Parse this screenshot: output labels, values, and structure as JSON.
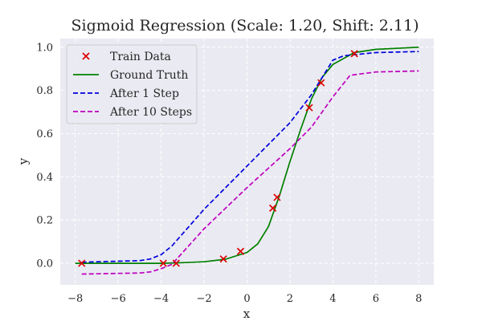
{
  "chart_data": {
    "type": "line",
    "title": "Sigmoid Regression (Scale: 1.20, Shift: 2.11)",
    "xlabel": "x",
    "ylabel": "y",
    "xlim": [
      -8.7,
      8.7
    ],
    "ylim": [
      -0.1,
      1.04
    ],
    "xticks": [
      -8,
      -6,
      -4,
      -2,
      0,
      2,
      4,
      6,
      8
    ],
    "xtick_labels": [
      "−8",
      "−6",
      "−4",
      "−2",
      "0",
      "2",
      "4",
      "6",
      "8"
    ],
    "yticks": [
      0.0,
      0.2,
      0.4,
      0.6,
      0.8,
      1.0
    ],
    "ytick_labels": [
      "0.0",
      "0.2",
      "0.4",
      "0.6",
      "0.8",
      "1.0"
    ],
    "grid": true,
    "legend_position": "top-left",
    "background_color": "#eaeaf2",
    "grid_color": "#ffffff",
    "series": [
      {
        "name": "Train Data",
        "kind": "scatter",
        "marker": "x",
        "color": "#dd0000",
        "points": [
          [
            -7.7,
            0.0
          ],
          [
            -3.9,
            0.0
          ],
          [
            -3.3,
            0.0
          ],
          [
            -1.1,
            0.02
          ],
          [
            -0.3,
            0.055
          ],
          [
            1.2,
            0.255
          ],
          [
            1.4,
            0.305
          ],
          [
            2.9,
            0.72
          ],
          [
            3.45,
            0.835
          ],
          [
            5.0,
            0.97
          ]
        ]
      },
      {
        "name": "Ground Truth",
        "kind": "line",
        "style": "solid",
        "color": "#008000",
        "points": [
          [
            -8,
            0.0
          ],
          [
            -6,
            0.0
          ],
          [
            -4,
            0.0
          ],
          [
            -3,
            0.003
          ],
          [
            -2,
            0.007
          ],
          [
            -1,
            0.019
          ],
          [
            0,
            0.05
          ],
          [
            0.5,
            0.09
          ],
          [
            1,
            0.17
          ],
          [
            1.5,
            0.31
          ],
          [
            2,
            0.47
          ],
          [
            2.5,
            0.62
          ],
          [
            3,
            0.76
          ],
          [
            3.5,
            0.86
          ],
          [
            4,
            0.92
          ],
          [
            5,
            0.975
          ],
          [
            6,
            0.99
          ],
          [
            8,
            1.0
          ]
        ]
      },
      {
        "name": "After 1 Step",
        "kind": "line",
        "style": "dashed",
        "color": "#0000dd",
        "points": [
          [
            -7.7,
            0.005
          ],
          [
            -5.0,
            0.012
          ],
          [
            -4.5,
            0.02
          ],
          [
            -4.0,
            0.04
          ],
          [
            -3.5,
            0.08
          ],
          [
            -2.0,
            0.25
          ],
          [
            0.0,
            0.45
          ],
          [
            2.0,
            0.65
          ],
          [
            3.0,
            0.78
          ],
          [
            4.0,
            0.94
          ],
          [
            4.5,
            0.96
          ],
          [
            6.0,
            0.975
          ],
          [
            8.0,
            0.98
          ]
        ]
      },
      {
        "name": "After 10 Steps",
        "kind": "line",
        "style": "dashed",
        "color": "#bf00bf",
        "points": [
          [
            -7.7,
            -0.05
          ],
          [
            -5.0,
            -0.045
          ],
          [
            -4.5,
            -0.04
          ],
          [
            -4.0,
            -0.025
          ],
          [
            -3.5,
            -0.005
          ],
          [
            -2.0,
            0.16
          ],
          [
            0.0,
            0.35
          ],
          [
            2.0,
            0.53
          ],
          [
            3.0,
            0.63
          ],
          [
            4.0,
            0.77
          ],
          [
            4.8,
            0.87
          ],
          [
            6.0,
            0.885
          ],
          [
            8.0,
            0.89
          ]
        ]
      }
    ]
  }
}
